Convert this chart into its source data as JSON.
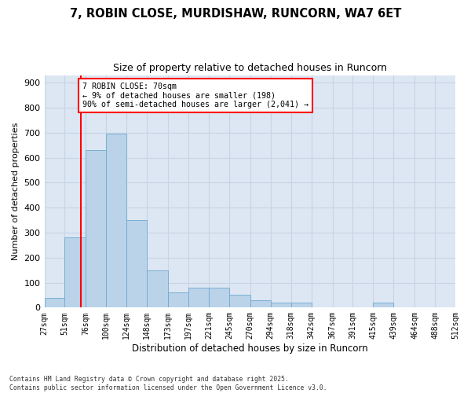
{
  "title_line1": "7, ROBIN CLOSE, MURDISHAW, RUNCORN, WA7 6ET",
  "title_line2": "Size of property relative to detached houses in Runcorn",
  "xlabel": "Distribution of detached houses by size in Runcorn",
  "ylabel": "Number of detached properties",
  "bar_edges": [
    27,
    51,
    76,
    100,
    124,
    148,
    173,
    197,
    221,
    245,
    270,
    294,
    318,
    342,
    367,
    391,
    415,
    439,
    464,
    488,
    512
  ],
  "bar_heights": [
    40,
    280,
    630,
    695,
    350,
    150,
    60,
    80,
    80,
    50,
    30,
    20,
    20,
    0,
    0,
    0,
    20,
    0,
    0,
    0
  ],
  "bar_color": "#bad3e8",
  "bar_edgecolor": "#6fa8d0",
  "grid_color": "#c8d4e3",
  "background_color": "#dce7f3",
  "plot_bg_color": "#dce7f3",
  "red_line_x": 70,
  "annotation_text": "7 ROBIN CLOSE: 70sqm\n← 9% of detached houses are smaller (198)\n90% of semi-detached houses are larger (2,041) →",
  "annotation_box_facecolor": "white",
  "annotation_box_edgecolor": "red",
  "ylim": [
    0,
    930
  ],
  "yticks": [
    0,
    100,
    200,
    300,
    400,
    500,
    600,
    700,
    800,
    900
  ],
  "footer_text": "Contains HM Land Registry data © Crown copyright and database right 2025.\nContains public sector information licensed under the Open Government Licence v3.0.",
  "tick_labels": [
    "27sqm",
    "51sqm",
    "76sqm",
    "100sqm",
    "124sqm",
    "148sqm",
    "173sqm",
    "197sqm",
    "221sqm",
    "245sqm",
    "270sqm",
    "294sqm",
    "318sqm",
    "342sqm",
    "367sqm",
    "391sqm",
    "415sqm",
    "439sqm",
    "464sqm",
    "488sqm",
    "512sqm"
  ]
}
